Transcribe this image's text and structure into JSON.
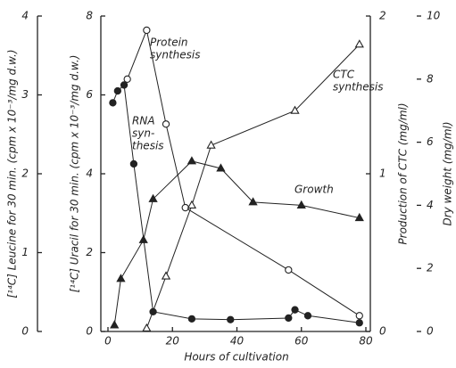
{
  "chart_data": {
    "type": "line",
    "xlabel": "Hours of cultivation",
    "xlim": [
      0,
      80
    ],
    "xticks": [
      0,
      20,
      40,
      60,
      80
    ],
    "ylabel": "[¹⁴C] Leucine for 30 min. (cpm x 10⁻³/mg d.w.)",
    "ylim": [
      0,
      4
    ],
    "yticks": [
      0,
      1,
      2,
      3,
      4
    ],
    "y2label": "[¹⁴C] Uracil for 30 min. (cpm x 10⁻³/mg d.w.)",
    "y2lim": [
      0,
      8
    ],
    "y2ticks": [
      0,
      2,
      4,
      6,
      8
    ],
    "y3label": "Production of CTC (mg/ml)",
    "y3lim": [
      0,
      2
    ],
    "y3ticks": [
      0,
      1,
      2
    ],
    "y4label": "Dry weight (mg/ml)",
    "y4lim": [
      0,
      10
    ],
    "y4ticks": [
      0,
      2,
      4,
      6,
      8,
      10
    ],
    "series": [
      {
        "label_lines": [
          "Protein",
          "synthesis"
        ],
        "axis": "y",
        "marker": "open-circle",
        "color": "#222",
        "x": [
          6,
          12,
          18,
          24,
          56,
          78
        ],
        "values": [
          3.2,
          3.82,
          2.63,
          1.57,
          0.78,
          0.2
        ]
      },
      {
        "label_lines": [
          "RNA",
          "syn-",
          "thesis"
        ],
        "axis": "y2",
        "marker": "filled-circle",
        "color": "#222",
        "x": [
          1.5,
          3,
          5,
          8,
          14,
          26,
          38,
          56,
          58,
          62,
          78
        ],
        "values": [
          5.8,
          6.1,
          6.25,
          4.25,
          0.5,
          0.32,
          0.3,
          0.34,
          0.55,
          0.4,
          0.22
        ]
      },
      {
        "label_lines": [
          "Growth"
        ],
        "axis": "y4",
        "marker": "filled-triangle",
        "color": "#222",
        "x": [
          2,
          4,
          11,
          14,
          26,
          35,
          45,
          60,
          78
        ],
        "values": [
          0.2,
          1.67,
          2.9,
          4.2,
          5.4,
          5.17,
          4.1,
          4.0,
          3.6
        ]
      },
      {
        "label_lines": [
          "CTC",
          "synthesis"
        ],
        "axis": "y3",
        "marker": "open-triangle",
        "color": "#222",
        "x": [
          12,
          18,
          26,
          32,
          58,
          78
        ],
        "values": [
          0.02,
          0.35,
          0.8,
          1.18,
          1.4,
          1.82
        ]
      }
    ]
  }
}
